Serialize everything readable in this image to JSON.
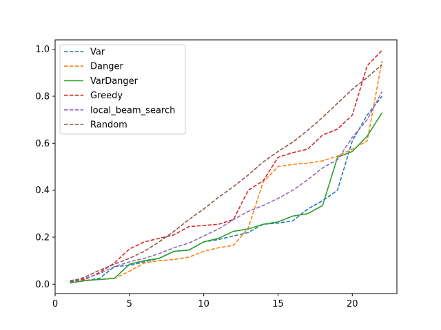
{
  "chart_data": {
    "type": "line",
    "title": "",
    "xlabel": "",
    "ylabel": "",
    "xlim": [
      0,
      23
    ],
    "ylim": [
      -0.04,
      1.04
    ],
    "xticks": [
      0,
      5,
      10,
      15,
      20
    ],
    "xtick_labels": [
      "0",
      "5",
      "10",
      "15",
      "20"
    ],
    "yticks": [
      0.0,
      0.2,
      0.4,
      0.6,
      0.8,
      1.0
    ],
    "ytick_labels": [
      "0.0",
      "0.2",
      "0.4",
      "0.6",
      "0.8",
      "1.0"
    ],
    "grid": false,
    "legend_position": "upper-left",
    "x": [
      1,
      2,
      3,
      4,
      5,
      6,
      7,
      8,
      9,
      10,
      11,
      12,
      13,
      14,
      15,
      16,
      17,
      18,
      19,
      20,
      21,
      22
    ],
    "series": [
      {
        "name": "Var",
        "color": "#1f77b4",
        "style": "dashed",
        "values": [
          0.01,
          0.015,
          0.025,
          0.075,
          0.08,
          0.095,
          0.11,
          0.14,
          0.145,
          0.18,
          0.19,
          0.205,
          0.22,
          0.255,
          0.26,
          0.27,
          0.32,
          0.355,
          0.4,
          0.61,
          0.72,
          0.8
        ]
      },
      {
        "name": "Danger",
        "color": "#ff7f0e",
        "style": "dashed",
        "values": [
          0.005,
          0.015,
          0.02,
          0.025,
          0.055,
          0.09,
          0.1,
          0.105,
          0.115,
          0.14,
          0.155,
          0.165,
          0.24,
          0.435,
          0.5,
          0.51,
          0.515,
          0.525,
          0.545,
          0.575,
          0.61,
          0.95
        ]
      },
      {
        "name": "VarDanger",
        "color": "#2ca02c",
        "style": "solid",
        "values": [
          0.005,
          0.015,
          0.02,
          0.025,
          0.085,
          0.1,
          0.11,
          0.14,
          0.145,
          0.18,
          0.195,
          0.225,
          0.235,
          0.255,
          0.265,
          0.29,
          0.3,
          0.335,
          0.54,
          0.565,
          0.63,
          0.73
        ]
      },
      {
        "name": "Greedy",
        "color": "#d62728",
        "style": "dashed",
        "values": [
          0.015,
          0.02,
          0.05,
          0.09,
          0.15,
          0.18,
          0.195,
          0.21,
          0.245,
          0.25,
          0.255,
          0.275,
          0.4,
          0.44,
          0.54,
          0.56,
          0.575,
          0.635,
          0.66,
          0.72,
          0.93,
          0.995
        ]
      },
      {
        "name": "local_beam_search",
        "color": "#9467bd",
        "style": "dashed",
        "values": [
          0.015,
          0.025,
          0.045,
          0.075,
          0.095,
          0.11,
          0.13,
          0.155,
          0.175,
          0.205,
          0.235,
          0.275,
          0.31,
          0.335,
          0.365,
          0.4,
          0.445,
          0.495,
          0.53,
          0.625,
          0.7,
          0.82
        ]
      },
      {
        "name": "Random",
        "color": "#8c564b",
        "style": "dashed",
        "values": [
          0.01,
          0.03,
          0.06,
          0.085,
          0.11,
          0.14,
          0.18,
          0.225,
          0.275,
          0.32,
          0.37,
          0.415,
          0.465,
          0.52,
          0.565,
          0.605,
          0.655,
          0.71,
          0.77,
          0.83,
          0.88,
          0.935
        ]
      }
    ]
  }
}
